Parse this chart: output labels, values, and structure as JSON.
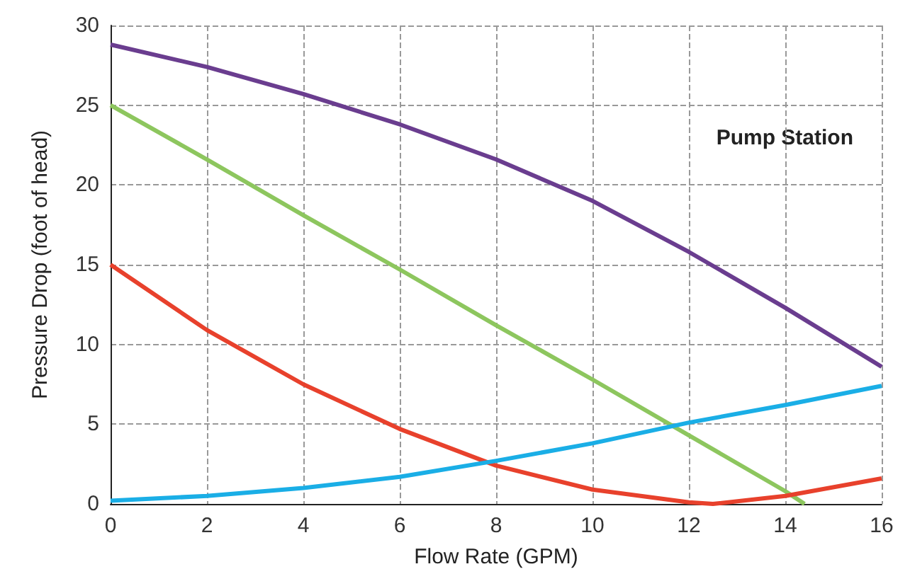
{
  "chart_data": {
    "type": "line",
    "xlabel": "Flow Rate (GPM)",
    "ylabel": "Pressure Drop (foot of head)",
    "annotations": [
      "Pump Station"
    ],
    "xlim": [
      0,
      16
    ],
    "xticks": [
      0,
      2,
      4,
      6,
      8,
      10,
      12,
      14,
      16
    ],
    "ylim": [
      0,
      30
    ],
    "yticks": [
      0,
      5,
      10,
      15,
      20,
      25,
      30
    ],
    "grid": true,
    "marker": "none",
    "line_style": "solid",
    "series": [
      {
        "color": "#6a3d8f",
        "x": [
          0,
          2,
          4,
          6,
          8,
          10,
          12,
          14,
          16
        ],
        "values": [
          28.8,
          27.4,
          25.7,
          23.8,
          21.6,
          19.0,
          15.8,
          12.3,
          8.6
        ]
      },
      {
        "color": "#8dc65e",
        "x": [
          0,
          2,
          4,
          6,
          8,
          10,
          12,
          14,
          14.4
        ],
        "values": [
          25,
          21.6,
          18.1,
          14.7,
          11.2,
          7.8,
          4.3,
          0.8,
          0
        ]
      },
      {
        "color": "#e8412c",
        "x": [
          0,
          2,
          4,
          6,
          8,
          10,
          12,
          12.5,
          14,
          16
        ],
        "values": [
          15,
          10.9,
          7.5,
          4.7,
          2.4,
          0.9,
          0.1,
          0,
          0.5,
          1.6
        ]
      },
      {
        "color": "#1aaee6",
        "x": [
          0,
          2,
          4,
          6,
          8,
          10,
          12,
          14,
          16
        ],
        "values": [
          0.2,
          0.5,
          1.0,
          1.7,
          2.7,
          3.8,
          5.1,
          6.2,
          7.4
        ]
      }
    ]
  }
}
